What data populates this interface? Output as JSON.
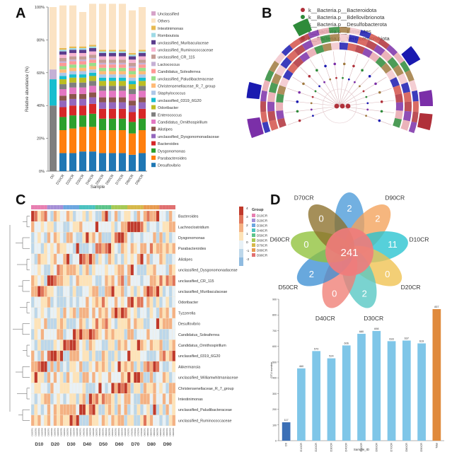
{
  "panels": {
    "A": {
      "label": "A",
      "chart_data": {
        "type": "bar",
        "stacked": true,
        "ylabel": "Relative abundance (%)",
        "xlabel": "Sample",
        "ylim": [
          0,
          100
        ],
        "y_ticks": [
          "0%",
          "20%",
          "40%",
          "60%",
          "80%",
          "100%"
        ],
        "categories": [
          "D0",
          "D10CR",
          "D20CR",
          "D30CR",
          "D40CR",
          "D50CR",
          "D60CR",
          "D70CR",
          "D80CR",
          "D90CR"
        ],
        "series": [
          {
            "name": "Desulfovibrio",
            "color": "#1f77b4",
            "values": [
              0,
              11,
              11,
              12,
              12,
              11,
              11,
              11,
              10,
              11
            ]
          },
          {
            "name": "Parabacteroides",
            "color": "#ff7f0e",
            "values": [
              0,
              14,
              15,
              15,
              15,
              14,
              14,
              14,
              13,
              14
            ]
          },
          {
            "name": "Dysgonomonas",
            "color": "#2ca02c",
            "values": [
              0,
              8,
              8,
              7,
              8,
              7,
              7,
              7,
              7,
              7
            ]
          },
          {
            "name": "Bacteroides",
            "color": "#d62728",
            "values": [
              0,
              6,
              6,
              6,
              6,
              6,
              6,
              6,
              6,
              6
            ]
          },
          {
            "name": "unclassified_Dysgonomonadaceae",
            "color": "#9467bd",
            "values": [
              0,
              4,
              4,
              4,
              4,
              4,
              4,
              4,
              4,
              4
            ]
          },
          {
            "name": "Alistipes",
            "color": "#8c564b",
            "values": [
              0,
              3,
              3,
              3,
              3,
              3,
              3,
              3,
              3,
              3
            ]
          },
          {
            "name": "Candidatus_Ornithospirillum",
            "color": "#e377c2",
            "values": [
              0,
              4,
              4,
              4,
              4,
              4,
              4,
              4,
              4,
              4
            ]
          },
          {
            "name": "Enterococcus",
            "color": "#7f7f7f",
            "values": [
              40,
              3,
              3,
              3,
              3,
              3,
              3,
              3,
              3,
              3
            ]
          },
          {
            "name": "Odoribacter",
            "color": "#bcbd22",
            "values": [
              0,
              3,
              3,
              3,
              3,
              3,
              3,
              3,
              3,
              3
            ]
          },
          {
            "name": "unclassified_0319_6G20",
            "color": "#17becf",
            "values": [
              16,
              2,
              2,
              2,
              2,
              2,
              2,
              2,
              2,
              2
            ]
          },
          {
            "name": "Staphylococcus",
            "color": "#aec7e8",
            "values": [
              0,
              2,
              2,
              2,
              2,
              2,
              2,
              2,
              2,
              2
            ]
          },
          {
            "name": "Christensenellaceae_R_7_group",
            "color": "#ffbb78",
            "values": [
              0,
              2,
              2,
              2,
              2,
              2,
              2,
              2,
              2,
              2
            ]
          },
          {
            "name": "unclassified_Paludibacteraceae",
            "color": "#98df8a",
            "values": [
              0,
              2,
              2,
              2,
              2,
              2,
              2,
              2,
              2,
              2
            ]
          },
          {
            "name": "Candidatus_Soleaferrea",
            "color": "#ff9896",
            "values": [
              0,
              2,
              2,
              2,
              2,
              2,
              2,
              2,
              2,
              2
            ]
          },
          {
            "name": "Lactococcus",
            "color": "#c5b0d5",
            "values": [
              6,
              1,
              1,
              1,
              1,
              1,
              1,
              1,
              1,
              1
            ]
          },
          {
            "name": "unclassified_CR_115",
            "color": "#c49c94",
            "values": [
              0,
              2,
              2,
              2,
              2,
              2,
              2,
              2,
              2,
              2
            ]
          },
          {
            "name": "unclassified_Ruminococcaceae",
            "color": "#f7b6d2",
            "values": [
              0,
              2,
              2,
              2,
              2,
              2,
              2,
              2,
              2,
              2
            ]
          },
          {
            "name": "unclassified_Muribaculaceae",
            "color": "#5c3c8c",
            "values": [
              0,
              2,
              2,
              2,
              2,
              2,
              2,
              2,
              2,
              2
            ]
          },
          {
            "name": "Romboutsia",
            "color": "#9edae5",
            "values": [
              0,
              1,
              1,
              1,
              1,
              1,
              1,
              1,
              1,
              1
            ]
          },
          {
            "name": "Intestinimonas",
            "color": "#e7ba52",
            "values": [
              0,
              1,
              1,
              1,
              1,
              1,
              1,
              1,
              1,
              1
            ]
          },
          {
            "name": "Others",
            "color": "#fbe3c4",
            "values": [
              38,
              26,
              25,
              21,
              25,
              28,
              28,
              28,
              26,
              26
            ]
          },
          {
            "name": "Unclassified",
            "color": "#d6a3c9",
            "values": [
              0,
              0,
              0,
              0,
              0,
              0,
              0,
              0,
              0,
              0
            ]
          }
        ],
        "legend_order": [
          "Unclassified",
          "Others",
          "Intestinimonas",
          "Romboutsia",
          "unclassified_Muribaculaceae",
          "unclassified_Ruminococcaceae",
          "unclassified_CR_115",
          "Lactococcus",
          "Candidatus_Soleaferrea",
          "unclassified_Paludibacteraceae",
          "Christensenellaceae_R_7_group",
          "Staphylococcus",
          "unclassified_0319_6G20",
          "Odoribacter",
          "Enterococcus",
          "Candidatus_Ornithospirillum",
          "Alistipes",
          "unclassified_Dysgonomonadaceae",
          "Bacteroides",
          "Dysgonomonas",
          "Parabacteroides",
          "Desulfovibrio"
        ]
      }
    },
    "B": {
      "label": "B",
      "legend": [
        {
          "name": "k__Bacteria.p__Bacteroidota",
          "color": "#b0303a"
        },
        {
          "name": "k__Bacteria.p__Bdellovibrionota",
          "color": "#2e8b3a"
        },
        {
          "name": "k__Bacteria.p__Desulfobacterota",
          "color": "#1a1ab0"
        },
        {
          "name": "k__Bacteria.p__Firmicutes",
          "color": "#7b2fa8"
        },
        {
          "name": "k__Bacteria.p__Verrucomicrobiota",
          "color": "#a07a40"
        }
      ]
    },
    "C": {
      "label": "C",
      "chart_data": {
        "type": "heatmap",
        "legend_title": "Group",
        "groups": [
          "D10",
          "D20",
          "D30",
          "D40",
          "D50",
          "D60",
          "D70",
          "D80",
          "D90"
        ],
        "group_legend": [
          {
            "name": "D10CR",
            "color": "#e77fb1"
          },
          {
            "name": "D20CR",
            "color": "#a58fd6"
          },
          {
            "name": "D30CR",
            "color": "#6ca6e0"
          },
          {
            "name": "D40CR",
            "color": "#4cc2c0"
          },
          {
            "name": "D50CR",
            "color": "#5cc48a"
          },
          {
            "name": "D60CR",
            "color": "#a6c955"
          },
          {
            "name": "D70CR",
            "color": "#d6b84a"
          },
          {
            "name": "D80CR",
            "color": "#e79a4f"
          },
          {
            "name": "D90CR",
            "color": "#e07070"
          }
        ],
        "scale_ticks": [
          "4",
          "3",
          "2",
          "1",
          "0",
          "-1",
          "-2"
        ],
        "rows": [
          "Bacteroides",
          "Lachnoclostridium",
          "Dysgonomonas",
          "Parabacteroides",
          "Alistipes",
          "unclassified_Dysgonomonadaceae",
          "unclassified_CR_115",
          "unclassified_Muribaculaceae",
          "Odoribacter",
          "Tyzzerella",
          "Desulfovibrio",
          "Candidatus_Soleaferrea",
          "Candidatus_Ornithospirillum",
          "unclassified_0319_6G20",
          "Akkermansia",
          "unclassified_Williamwhitmaniaceae",
          "Christensenellaceae_R_7_group",
          "Intestinimonas",
          "unclassified_Paludibacteraceae",
          "unclassified_Ruminococcaceae"
        ]
      }
    },
    "D": {
      "label": "D",
      "venn": {
        "center_value": "241",
        "petals": [
          {
            "name": "D80CR",
            "value": "2",
            "color": "#4a9ad9"
          },
          {
            "name": "D90CR",
            "value": "2",
            "color": "#f3a15a"
          },
          {
            "name": "D10CR",
            "value": "11",
            "color": "#27c3cf"
          },
          {
            "name": "D20CR",
            "value": "0",
            "color": "#f0c14f"
          },
          {
            "name": "D30CR",
            "value": "2",
            "color": "#54c7c3"
          },
          {
            "name": "D40CR",
            "value": "0",
            "color": "#f07d74"
          },
          {
            "name": "D50CR",
            "value": "2",
            "color": "#3d8fd3"
          },
          {
            "name": "D60CR",
            "value": "0",
            "color": "#8fc23a"
          },
          {
            "name": "D70CR",
            "value": "0",
            "color": "#8c6f2a"
          }
        ]
      },
      "chart_data": {
        "type": "bar",
        "ylabel": "OTU number",
        "xlabel": "Sample_ID",
        "ylim": [
          0,
          900
        ],
        "y_ticks": [
          "0",
          "100",
          "200",
          "300",
          "400",
          "500",
          "600",
          "700",
          "800",
          "900"
        ],
        "categories": [
          "D0",
          "D10CR",
          "D20CR",
          "D30CR",
          "D40CR",
          "D50CR",
          "D60CR",
          "D70CR",
          "D80CR",
          "D90CR",
          "Total"
        ],
        "values": [
          117,
          460,
          570,
          524,
          606,
          680,
          698,
          633,
          637,
          619,
          837
        ],
        "value_labels": [
          "117",
          "460",
          "570",
          "524",
          "606",
          "680",
          "698",
          "633",
          "637",
          "619",
          "837"
        ],
        "colors": [
          "#3b6fb6",
          "#7fc6e8",
          "#7fc6e8",
          "#7fc6e8",
          "#7fc6e8",
          "#7fc6e8",
          "#7fc6e8",
          "#7fc6e8",
          "#7fc6e8",
          "#7fc6e8",
          "#e08a3c"
        ]
      }
    }
  }
}
